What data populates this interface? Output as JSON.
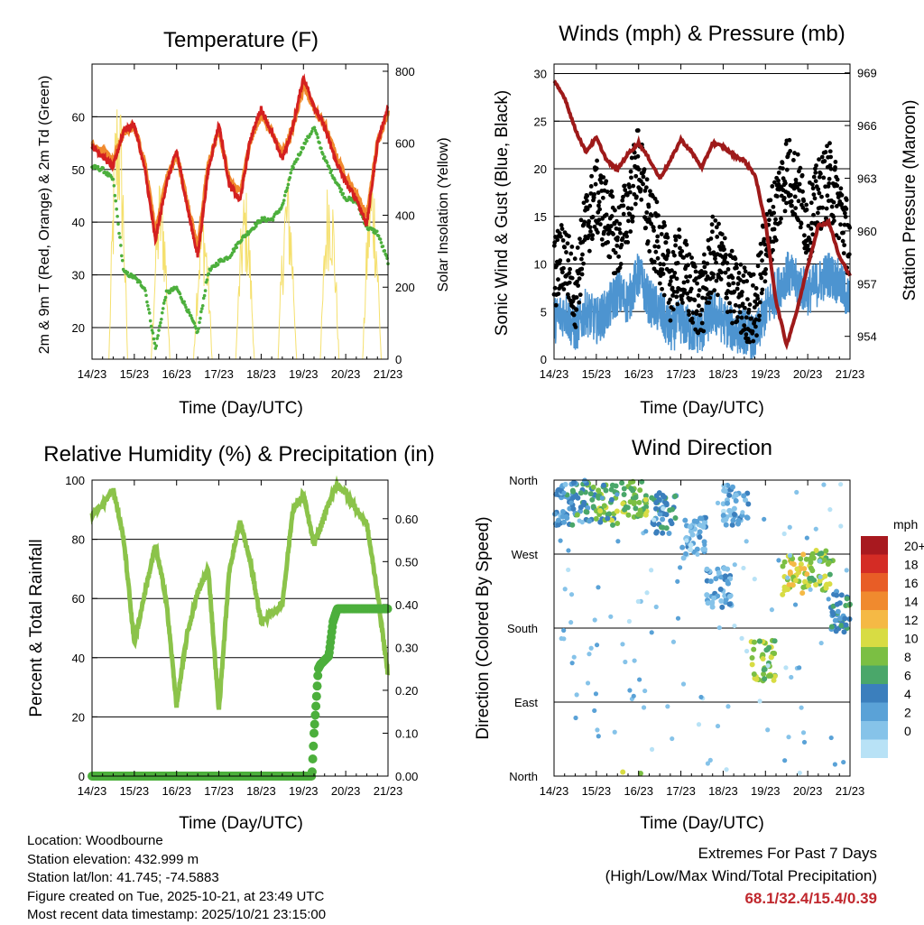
{
  "x_ticks": [
    "14/23",
    "15/23",
    "16/23",
    "17/23",
    "18/23",
    "19/23",
    "20/23",
    "21/23"
  ],
  "x_label": "Time (Day/UTC)",
  "colors": {
    "red": "#d42020",
    "orange": "#f08a2e",
    "green": "#4caf3c",
    "yellow": "#f5e06e",
    "black": "#000000",
    "blue": "#4d94d0",
    "maroon": "#9e1a1a",
    "lightgreen": "#8bc34a",
    "precipgreen": "#4caf3c",
    "scale": [
      "#b8e2f6",
      "#86c3e9",
      "#5aa2d7",
      "#3b7fbd",
      "#4aa76a",
      "#7bbf43",
      "#d8dc43",
      "#f5b945",
      "#f08a2e",
      "#e85d26",
      "#d42c25",
      "#a8191f"
    ]
  },
  "info": {
    "location": "Location: Woodbourne",
    "elevation": "Station elevation: 432.999 m",
    "latlon": "Station lat/lon: 41.745; -74.5883",
    "created": "Figure created on Tue, 2025-10-21, at 23:49 UTC",
    "recent": "Most recent data timestamp: 2025/10/21 23:15:00"
  },
  "extremes": {
    "title": "Extremes For Past 7 Days",
    "subtitle": "(High/Low/Max Wind/Total Precipitation)",
    "values": "68.1/32.4/15.4/0.39"
  },
  "chart_data": [
    {
      "type": "line",
      "title": "Temperature (F)",
      "xlabel": "Time (Day/UTC)",
      "ylabel": "2m & 9m T (Red, Orange) & 2m Td (Green)",
      "y2label": "Solar Insolation (Yellow)",
      "ylim": [
        14,
        70
      ],
      "yticks": [
        20,
        30,
        40,
        50,
        60
      ],
      "y2lim": [
        0,
        820
      ],
      "y2ticks": [
        0,
        200,
        400,
        600,
        800
      ],
      "x": [
        0,
        0.25,
        0.5,
        0.75,
        1,
        1.25,
        1.5,
        1.75,
        2,
        2.25,
        2.5,
        2.75,
        3,
        3.25,
        3.5,
        3.75,
        4,
        4.25,
        4.5,
        4.75,
        5,
        5.25,
        5.5,
        5.75,
        6,
        6.25,
        6.5,
        6.75,
        7
      ],
      "series": [
        {
          "name": "2m T",
          "color": "red",
          "values": [
            54.5,
            52.5,
            50.5,
            57.5,
            58.5,
            50.0,
            36.5,
            47.0,
            53.5,
            43.0,
            33.5,
            50.0,
            58.5,
            47.0,
            44.0,
            56.0,
            61.5,
            57.0,
            52.0,
            58.0,
            67.5,
            62.0,
            58.0,
            52.0,
            47.5,
            44.5,
            39.5,
            55.0,
            62.0
          ]
        },
        {
          "name": "9m T",
          "color": "orange",
          "values": [
            54.5,
            53.5,
            51.5,
            57.0,
            58.0,
            51.0,
            38.0,
            48.0,
            53.0,
            44.0,
            35.0,
            51.0,
            57.5,
            48.0,
            45.5,
            55.5,
            60.5,
            57.0,
            53.0,
            58.0,
            66.0,
            61.5,
            58.5,
            53.0,
            48.5,
            45.5,
            41.0,
            55.0,
            61.0
          ]
        },
        {
          "name": "2m Td",
          "color": "green",
          "values": [
            50.5,
            50.0,
            48.0,
            30.5,
            29.5,
            27.5,
            16.0,
            26.5,
            27.5,
            23.5,
            19.0,
            30.5,
            32.5,
            33.5,
            36.5,
            38.5,
            40.5,
            40.5,
            43.0,
            50.5,
            54.5,
            58.0,
            52.0,
            48.0,
            44.5,
            44.0,
            39.0,
            38.0,
            32.5
          ]
        },
        {
          "name": "Solar Insolation",
          "color": "yellow",
          "axis": "y2",
          "days_peak": [
            800,
            530,
            450,
            490,
            530,
            550,
            560
          ]
        }
      ]
    },
    {
      "type": "scatter",
      "title": "Winds (mph) & Pressure (mb)",
      "xlabel": "Time (Day/UTC)",
      "ylabel": "Sonic Wind & Gust (Blue, Black)",
      "y2label": "Station Pressure (Maroon)",
      "ylim": [
        0,
        31
      ],
      "yticks": [
        0,
        5,
        10,
        15,
        20,
        25,
        30
      ],
      "y2lim": [
        952.7,
        969.5
      ],
      "y2ticks": [
        954,
        957,
        960,
        963,
        966,
        969
      ],
      "x": [
        0,
        0.25,
        0.5,
        0.75,
        1,
        1.25,
        1.5,
        1.75,
        2,
        2.25,
        2.5,
        2.75,
        3,
        3.25,
        3.5,
        3.75,
        4,
        4.25,
        4.5,
        4.75,
        5,
        5.25,
        5.5,
        5.75,
        6,
        6.25,
        6.5,
        6.75,
        7
      ],
      "series": [
        {
          "name": "Wind",
          "color": "blue",
          "values": [
            4,
            5,
            3,
            5,
            4,
            5,
            7,
            6,
            9,
            6,
            5,
            3,
            4,
            3,
            3,
            5,
            4,
            3,
            3,
            2,
            5,
            7,
            9,
            8,
            7,
            8,
            9,
            8,
            6
          ]
        },
        {
          "name": "Gust",
          "color": "black",
          "values": [
            9,
            11,
            7,
            14,
            17,
            15,
            12,
            16,
            21,
            14,
            12,
            8,
            10,
            7,
            6,
            11,
            10,
            7,
            6,
            5,
            12,
            16,
            20,
            18,
            14,
            17,
            19,
            16,
            12
          ]
        },
        {
          "name": "Pressure",
          "color": "maroon",
          "values": [
            968.5,
            967.6,
            965.8,
            964.5,
            965.3,
            964.0,
            963.5,
            964.4,
            965.0,
            964.1,
            963.0,
            964.0,
            965.2,
            964.5,
            963.6,
            965.0,
            964.8,
            964.3,
            964.0,
            963.2,
            960.5,
            956.0,
            953.5,
            955.5,
            958.0,
            960.3,
            960.5,
            958.5,
            957.5
          ]
        }
      ]
    },
    {
      "type": "line",
      "title": "Relative Humidity (%) & Precipitation (in)",
      "xlabel": "Time (Day/UTC)",
      "ylabel": "Percent & Total Rainfall",
      "ylim": [
        0,
        100
      ],
      "yticks": [
        0,
        20,
        40,
        60,
        80,
        100
      ],
      "y2lim": [
        0,
        0.69
      ],
      "y2ticks": [
        "0.00",
        "0.10",
        "0.20",
        "0.30",
        "0.40",
        "0.50",
        "0.60"
      ],
      "x": [
        0,
        0.25,
        0.5,
        0.75,
        1,
        1.25,
        1.5,
        1.75,
        2,
        2.25,
        2.5,
        2.75,
        3,
        3.25,
        3.5,
        3.75,
        4,
        4.25,
        4.5,
        4.75,
        5,
        5.25,
        5.5,
        5.75,
        6,
        6.25,
        6.5,
        6.75,
        7
      ],
      "series": [
        {
          "name": "RH",
          "color": "lightgreen",
          "values": [
            88,
            92,
            97,
            80,
            45,
            62,
            78,
            60,
            24,
            48,
            62,
            70,
            22,
            70,
            86,
            72,
            52,
            55,
            58,
            90,
            95,
            78,
            88,
            98,
            96,
            90,
            85,
            62,
            34
          ]
        },
        {
          "name": "Precipitation",
          "color": "precipgreen",
          "axis": "y2",
          "x": [
            0,
            5.2,
            5.25,
            5.3,
            5.35,
            5.4,
            5.5,
            5.6,
            5.7,
            5.8,
            6.0,
            7.0
          ],
          "values": [
            0,
            0,
            0.1,
            0.17,
            0.25,
            0.26,
            0.27,
            0.28,
            0.36,
            0.39,
            0.39,
            0.39
          ]
        }
      ]
    },
    {
      "type": "scatter",
      "title": "Wind Direction",
      "xlabel": "Time (Day/UTC)",
      "ylabel": "Direction (Colored By Speed)",
      "ylim": [
        0,
        360
      ],
      "yticks": [
        "North",
        "East",
        "South",
        "West",
        "North"
      ],
      "legend_title": "mph",
      "legend_labels": [
        "20+",
        "18",
        "16",
        "14",
        "12",
        "10",
        "8",
        "6",
        "4",
        "2",
        "0"
      ],
      "legend": "right",
      "clusters": [
        {
          "x": 0.2,
          "dir": 330,
          "speed": 5
        },
        {
          "x": 0.7,
          "dir": 335,
          "speed": 7
        },
        {
          "x": 1.2,
          "dir": 330,
          "speed": 9
        },
        {
          "x": 1.9,
          "dir": 340,
          "speed": 10
        },
        {
          "x": 2.6,
          "dir": 320,
          "speed": 6
        },
        {
          "x": 3.3,
          "dir": 290,
          "speed": 3
        },
        {
          "x": 3.9,
          "dir": 230,
          "speed": 4
        },
        {
          "x": 4.3,
          "dir": 330,
          "speed": 3
        },
        {
          "x": 4.95,
          "dir": 140,
          "speed": 10
        },
        {
          "x": 5.7,
          "dir": 245,
          "speed": 12
        },
        {
          "x": 6.3,
          "dir": 250,
          "speed": 10
        },
        {
          "x": 6.85,
          "dir": 200,
          "speed": 7
        }
      ]
    }
  ]
}
